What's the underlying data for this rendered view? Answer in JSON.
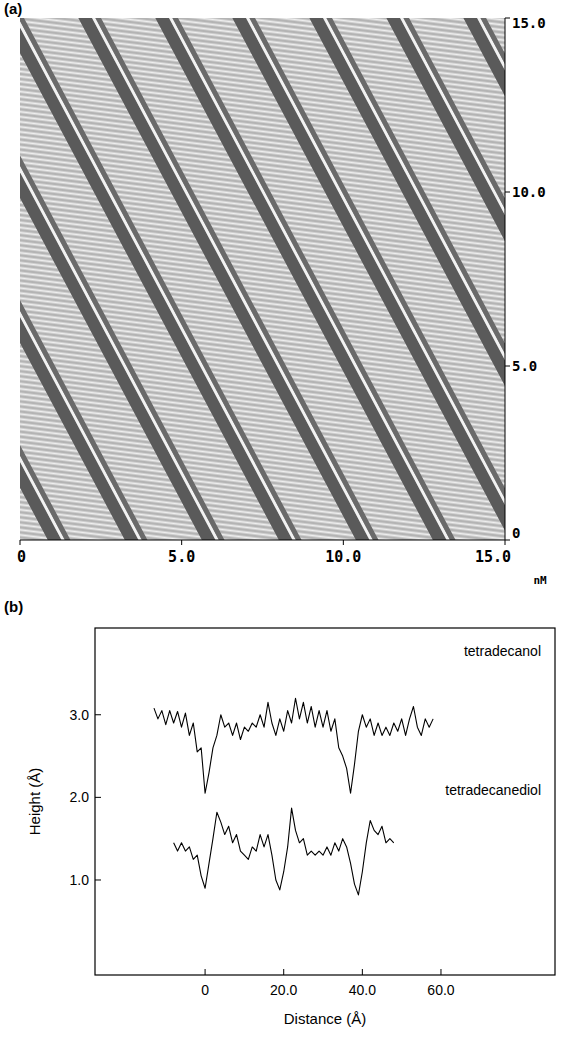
{
  "chart_data": [
    {
      "type": "image",
      "title": "(a)",
      "x_label": "nM",
      "xlim": [
        0,
        15
      ],
      "xticks": [
        0,
        {
          "value": 5,
          "label": "5.0"
        },
        {
          "value": 10,
          "label": "10.0"
        },
        {
          "value": 15,
          "label": "15.0"
        }
      ],
      "ylim": [
        0,
        15
      ],
      "yticks": [
        0,
        {
          "value": 5,
          "label": "5.0"
        },
        {
          "value": 10,
          "label": "10.0"
        },
        {
          "value": 15,
          "label": "15.0"
        }
      ]
    },
    {
      "type": "line",
      "title": "(b)",
      "x_label": "Distance (Å)",
      "y_label": "Height (Å)",
      "xlim": [
        -28,
        89
      ],
      "xticks": [
        0,
        {
          "value": 20,
          "label": "20.0"
        },
        {
          "value": 40,
          "label": "40.0"
        },
        {
          "value": 60,
          "label": "60.0"
        }
      ],
      "ylim": [
        -0.15,
        4.05
      ],
      "yticks": [
        {
          "value": 1,
          "label": "1.0"
        },
        {
          "value": 2,
          "label": "2.0"
        },
        {
          "value": 3,
          "label": "3.0"
        }
      ],
      "x": [
        -13,
        -12,
        -11,
        -10,
        -9,
        -8,
        -7,
        -6,
        -5,
        -4,
        -3,
        -2,
        -1,
        0,
        1,
        2,
        3,
        4,
        5,
        6,
        7,
        8,
        9,
        10,
        11,
        12,
        13,
        14,
        15,
        16,
        17,
        18,
        19,
        20,
        21,
        22,
        23,
        24,
        25,
        26,
        27,
        28,
        29,
        30,
        31,
        32,
        33,
        34,
        35,
        36,
        37,
        38,
        39,
        40,
        41,
        42,
        43,
        44,
        45,
        46,
        47,
        48,
        49,
        50,
        51,
        52,
        53,
        54,
        55,
        56,
        57,
        58
      ],
      "series": [
        {
          "name": "tetradecanol",
          "color": "#000000",
          "values": [
            3.08,
            2.95,
            3.05,
            2.88,
            3.05,
            2.9,
            3.04,
            2.85,
            3.02,
            2.75,
            2.9,
            2.55,
            2.6,
            2.05,
            2.3,
            2.6,
            2.75,
            3.0,
            2.85,
            2.9,
            2.75,
            2.9,
            2.7,
            2.85,
            2.8,
            2.9,
            2.85,
            3.0,
            2.85,
            3.15,
            2.9,
            2.75,
            2.95,
            2.8,
            3.05,
            2.9,
            3.2,
            2.95,
            3.15,
            2.9,
            3.1,
            2.85,
            3.05,
            2.85,
            3.05,
            2.8,
            2.95,
            2.6,
            2.5,
            2.35,
            2.05,
            2.4,
            2.8,
            3.0,
            2.85,
            2.95,
            2.75,
            2.9,
            2.75,
            2.85,
            2.75,
            2.9,
            2.8,
            2.95,
            2.75,
            2.95,
            3.1,
            2.85,
            2.75,
            2.95,
            2.85,
            2.95
          ]
        },
        {
          "name": "tetradecanediol",
          "color": "#000000",
          "values": [
            null,
            null,
            null,
            null,
            null,
            1.45,
            1.35,
            1.45,
            1.35,
            1.4,
            1.25,
            1.3,
            1.05,
            0.9,
            1.2,
            1.5,
            1.82,
            1.7,
            1.55,
            1.65,
            1.45,
            1.55,
            1.35,
            1.3,
            1.25,
            1.4,
            1.35,
            1.55,
            1.4,
            1.55,
            1.3,
            1.0,
            0.88,
            1.1,
            1.4,
            1.87,
            1.6,
            1.45,
            1.5,
            1.3,
            1.35,
            1.3,
            1.35,
            1.3,
            1.4,
            1.3,
            1.45,
            1.35,
            1.5,
            1.4,
            1.2,
            0.95,
            0.82,
            1.1,
            1.45,
            1.72,
            1.6,
            1.55,
            1.65,
            1.45,
            1.5,
            1.45,
            null,
            null,
            null,
            null,
            null,
            null,
            null,
            null,
            null,
            null
          ]
        }
      ]
    }
  ]
}
